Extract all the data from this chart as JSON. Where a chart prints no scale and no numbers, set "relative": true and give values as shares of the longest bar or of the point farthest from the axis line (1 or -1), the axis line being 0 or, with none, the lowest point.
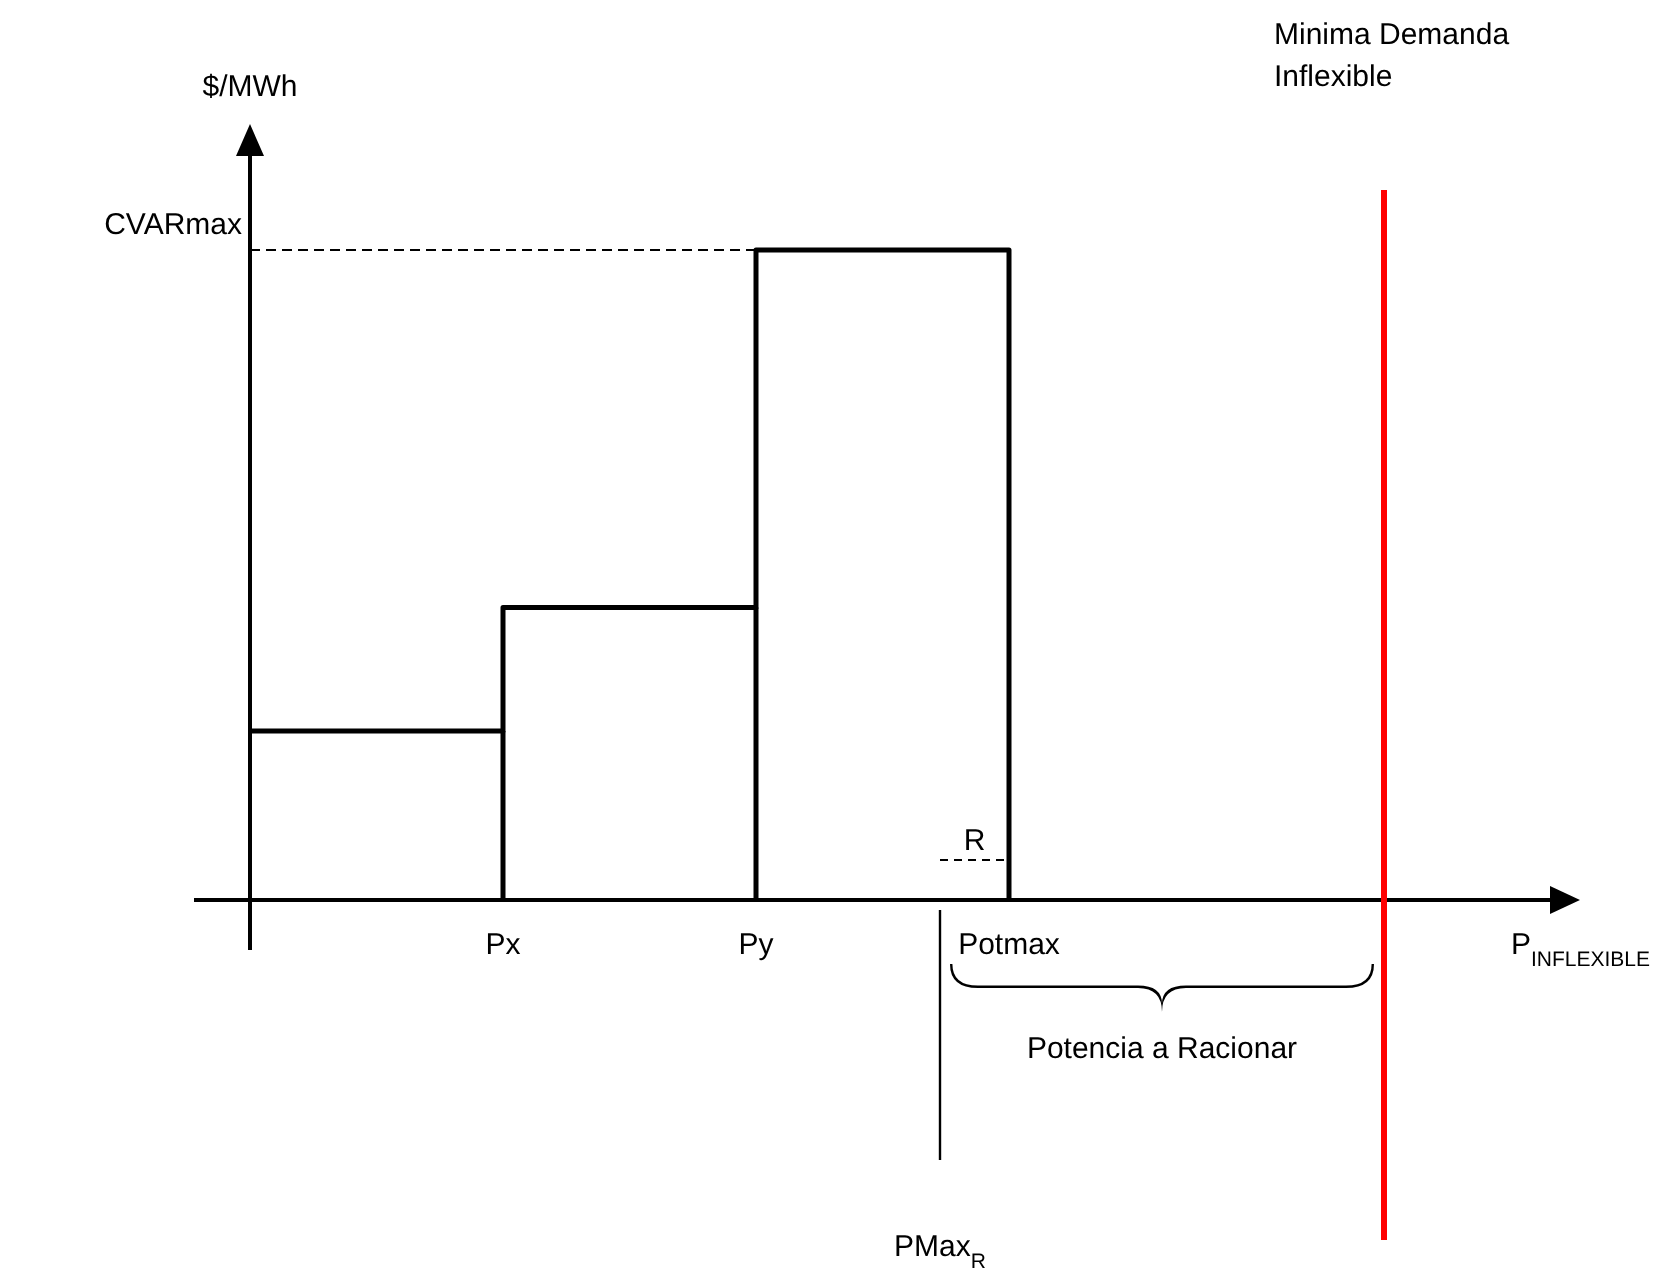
{
  "chart_data": {
    "type": "step",
    "relative": true,
    "ylabel": "$/MWh",
    "categories": [
      null,
      "Px",
      "Py",
      "Potmax"
    ],
    "values": [
      0.26,
      0.45,
      1,
      0
    ],
    "color": "#000000",
    "annotations": [
      "CVARmax",
      "R",
      "Potencia a Racionar",
      "Minima Demanda Inflexible",
      "PMax$_{R}$",
      "P$_{INFLEXIBLE}$"
    ]
  }
}
